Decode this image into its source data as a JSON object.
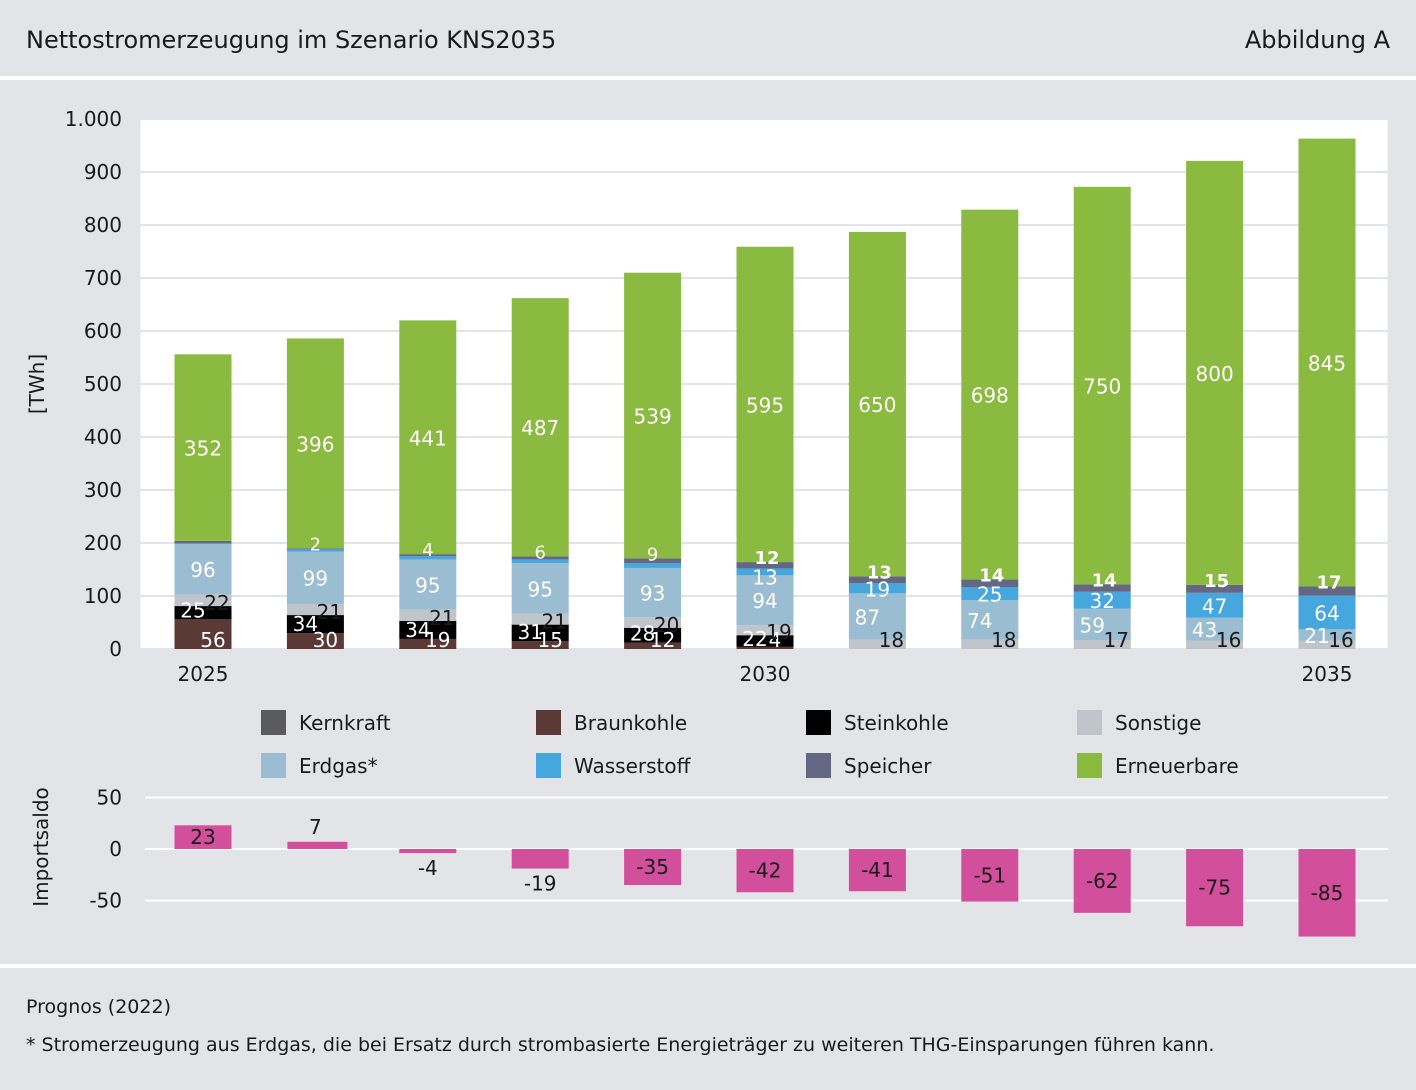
{
  "header": {
    "title": "Nettostromerzeugung im Szenario KNS2035",
    "figure_label": "Abbildung A"
  },
  "footer": {
    "source": "Prognos (2022)",
    "note": "* Stromerzeugung aus Erdgas, die bei Ersatz durch strombasierte Energieträger zu weiteren THG-Einsparungen führen kann."
  },
  "colors": {
    "background": "#e2e4e8",
    "plot_background": "#ffffff",
    "import_bar": "#d24f9b"
  },
  "chart_data": [
    {
      "type": "bar",
      "stacked": true,
      "ylabel": "[TWh]",
      "ylim": [
        0,
        1000
      ],
      "yticks": [
        0,
        100,
        200,
        300,
        400,
        500,
        600,
        700,
        800,
        900,
        1000
      ],
      "ytick_labels": [
        "0",
        "100",
        "200",
        "300",
        "400",
        "500",
        "600",
        "700",
        "800",
        "900",
        "1.000"
      ],
      "categories": [
        "2025",
        "2026",
        "2027",
        "2028",
        "2029",
        "2030",
        "2031",
        "2032",
        "2033",
        "2034",
        "2035"
      ],
      "xtick_labels": [
        "2025",
        "",
        "",
        "",
        "",
        "2030",
        "",
        "",
        "",
        "",
        "2035"
      ],
      "grid": true,
      "legend_position": "bottom",
      "series": [
        {
          "name": "Kernkraft",
          "color": "#5a5b5a",
          "values": [
            0,
            0,
            0,
            0,
            0,
            0,
            0,
            0,
            0,
            0,
            0
          ],
          "labels": [
            "",
            "",
            "",
            "",
            "",
            "",
            "",
            "",
            "",
            "",
            ""
          ]
        },
        {
          "name": "Braunkohle",
          "color": "#5b3a36",
          "values": [
            56,
            30,
            19,
            15,
            12,
            4,
            0,
            0,
            0,
            0,
            0
          ],
          "labels": [
            "56",
            "30",
            "19",
            "15",
            "12",
            "4",
            "",
            "",
            "",
            "",
            ""
          ]
        },
        {
          "name": "Steinkohle",
          "color": "#000000",
          "values": [
            25,
            34,
            34,
            31,
            28,
            22,
            0,
            0,
            0,
            0,
            0
          ],
          "labels": [
            "25",
            "34",
            "34",
            "31",
            "28",
            "22",
            "",
            "",
            "",
            "",
            ""
          ]
        },
        {
          "name": "Sonstige",
          "color": "#bfc5ca",
          "values": [
            22,
            21,
            21,
            21,
            20,
            19,
            18,
            18,
            17,
            16,
            16
          ],
          "labels": [
            "22",
            "21",
            "21",
            "21",
            "20",
            "19",
            "18",
            "18",
            "17",
            "16",
            "16"
          ]
        },
        {
          "name": "Erdgas*",
          "color": "#9bbdd1",
          "values": [
            96,
            99,
            95,
            95,
            93,
            94,
            87,
            74,
            59,
            43,
            21
          ],
          "labels": [
            "96",
            "99",
            "95",
            "95",
            "93",
            "94",
            "87",
            "74",
            "59",
            "43",
            "21"
          ]
        },
        {
          "name": "Wasserstoff",
          "color": "#46a6de",
          "values": [
            0,
            4,
            6,
            7,
            9,
            13,
            19,
            25,
            32,
            47,
            64
          ],
          "labels": [
            "",
            "",
            "",
            "",
            "",
            "13",
            "19",
            "25",
            "32",
            "47",
            "64"
          ]
        },
        {
          "name": "Speicher",
          "color": "#636783",
          "values": [
            5,
            2,
            4,
            6,
            9,
            12,
            13,
            14,
            14,
            15,
            17
          ],
          "labels": [
            "",
            "2",
            "4",
            "6",
            "9",
            "12",
            "13",
            "14",
            "14",
            "15",
            "17"
          ]
        },
        {
          "name": "Erneuerbare",
          "color": "#8aba3f",
          "values": [
            352,
            396,
            441,
            487,
            539,
            595,
            650,
            698,
            750,
            800,
            845
          ],
          "labels": [
            "352",
            "396",
            "441",
            "487",
            "539",
            "595",
            "650",
            "698",
            "750",
            "800",
            "845"
          ]
        }
      ],
      "legend": [
        "Kernkraft",
        "Braunkohle",
        "Steinkohle",
        "Sonstige",
        "Erdgas*",
        "Wasserstoff",
        "Speicher",
        "Erneuerbare"
      ]
    },
    {
      "type": "bar",
      "ylabel": "Importsaldo",
      "ylim": [
        -85,
        50
      ],
      "yticks": [
        50,
        0,
        -50
      ],
      "ytick_labels": [
        "50",
        "0",
        "-50"
      ],
      "categories": [
        "2025",
        "2026",
        "2027",
        "2028",
        "2029",
        "2030",
        "2031",
        "2032",
        "2033",
        "2034",
        "2035"
      ],
      "values": [
        23,
        7,
        -4,
        -19,
        -35,
        -42,
        -41,
        -51,
        -62,
        -75,
        -85
      ],
      "labels": [
        "23",
        "7",
        "-4",
        "-19",
        "-35",
        "-42",
        "-41",
        "-51",
        "-62",
        "-75",
        "-85"
      ],
      "grid": true
    }
  ]
}
